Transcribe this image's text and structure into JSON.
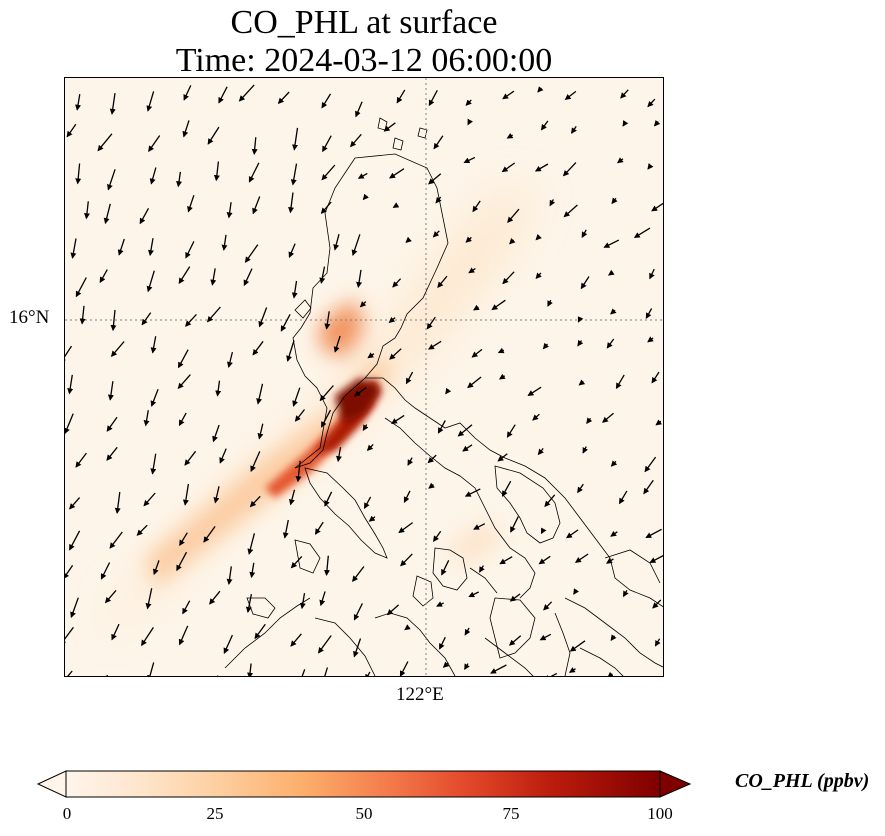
{
  "title": {
    "line1": "CO_PHL at surface",
    "line2": "Time: 2024-03-12 06:00:00"
  },
  "axes": {
    "lat_label": "16°N",
    "lon_label": "122°E",
    "gridlines": "dotted"
  },
  "colorbar": {
    "label": "CO_PHL (ppbv)",
    "ticks": [
      "0",
      "25",
      "50",
      "75",
      "100"
    ],
    "min": 0,
    "max": 100,
    "extend": "both",
    "colormap": [
      "#fff5eb",
      "#fee6ce",
      "#fdd0a2",
      "#fdae6b",
      "#fd8d3c",
      "#f16913",
      "#d94801",
      "#a63603",
      "#7f2704"
    ]
  },
  "colors": {
    "background": "#fdf5e9",
    "coastline": "#000000",
    "gridline": "#808080"
  },
  "map": {
    "region": "Philippines (Luzon)",
    "field": "CO_PHL surface concentration with wind vectors",
    "plume_max_ppbv": 100
  }
}
